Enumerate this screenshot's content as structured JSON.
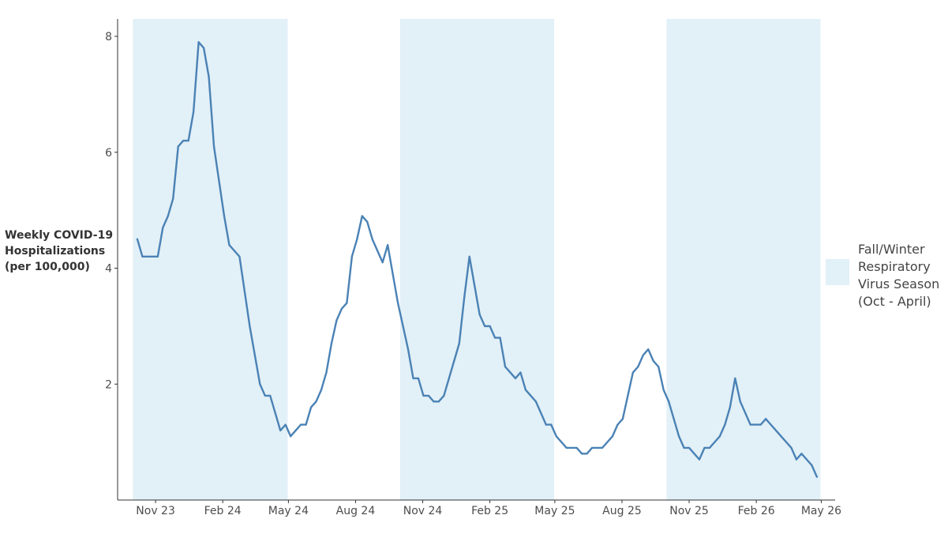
{
  "chart_data": {
    "type": "line",
    "title": "",
    "xlabel": "",
    "ylabel_lines": [
      "Weekly COVID-19",
      "Hospitalizations",
      "(per 100,000)"
    ],
    "ylim": [
      0,
      8.3
    ],
    "xlim": [
      "2023-09-10",
      "2026-05-20"
    ],
    "y_ticks": [
      2,
      4,
      6,
      8
    ],
    "x_ticks": [
      {
        "date": "2023-11-01",
        "label": "Nov 23"
      },
      {
        "date": "2024-02-01",
        "label": "Feb 24"
      },
      {
        "date": "2024-05-01",
        "label": "May 24"
      },
      {
        "date": "2024-08-01",
        "label": "Aug 24"
      },
      {
        "date": "2024-11-01",
        "label": "Nov 24"
      },
      {
        "date": "2025-02-01",
        "label": "Feb 25"
      },
      {
        "date": "2025-05-01",
        "label": "May 25"
      },
      {
        "date": "2025-08-01",
        "label": "Aug 25"
      },
      {
        "date": "2025-11-01",
        "label": "Nov 25"
      },
      {
        "date": "2026-02-01",
        "label": "Feb 26"
      },
      {
        "date": "2026-05-01",
        "label": "May 26"
      }
    ],
    "grid": false,
    "legend_position": "right",
    "line_color": "#4a82b5",
    "season_color": "#e2f0f7",
    "seasons": [
      {
        "start": "2023-10-01",
        "end": "2024-04-30"
      },
      {
        "start": "2024-10-01",
        "end": "2025-04-30"
      },
      {
        "start": "2025-10-01",
        "end": "2026-04-30"
      }
    ],
    "legend": {
      "lines": [
        "Fall/Winter",
        "Respiratory",
        "Virus Season",
        "(Oct - April)"
      ]
    },
    "series": [
      {
        "points": [
          [
            "2023-10-07",
            4.5
          ],
          [
            "2023-10-14",
            4.2
          ],
          [
            "2023-10-21",
            4.2
          ],
          [
            "2023-10-28",
            4.2
          ],
          [
            "2023-11-04",
            4.2
          ],
          [
            "2023-11-11",
            4.7
          ],
          [
            "2023-11-18",
            4.9
          ],
          [
            "2023-11-25",
            5.2
          ],
          [
            "2023-12-02",
            6.1
          ],
          [
            "2023-12-09",
            6.2
          ],
          [
            "2023-12-16",
            6.2
          ],
          [
            "2023-12-23",
            6.7
          ],
          [
            "2023-12-30",
            7.9
          ],
          [
            "2024-01-06",
            7.8
          ],
          [
            "2024-01-13",
            7.3
          ],
          [
            "2024-01-20",
            6.1
          ],
          [
            "2024-01-27",
            5.5
          ],
          [
            "2024-02-03",
            4.9
          ],
          [
            "2024-02-10",
            4.4
          ],
          [
            "2024-02-17",
            4.3
          ],
          [
            "2024-02-24",
            4.2
          ],
          [
            "2024-03-02",
            3.6
          ],
          [
            "2024-03-09",
            3.0
          ],
          [
            "2024-03-16",
            2.5
          ],
          [
            "2024-03-23",
            2.0
          ],
          [
            "2024-03-30",
            1.8
          ],
          [
            "2024-04-06",
            1.8
          ],
          [
            "2024-04-13",
            1.5
          ],
          [
            "2024-04-20",
            1.2
          ],
          [
            "2024-04-27",
            1.3
          ],
          [
            "2024-05-04",
            1.1
          ],
          [
            "2024-05-11",
            1.2
          ],
          [
            "2024-05-18",
            1.3
          ],
          [
            "2024-05-25",
            1.3
          ],
          [
            "2024-06-01",
            1.6
          ],
          [
            "2024-06-08",
            1.7
          ],
          [
            "2024-06-15",
            1.9
          ],
          [
            "2024-06-22",
            2.2
          ],
          [
            "2024-06-29",
            2.7
          ],
          [
            "2024-07-06",
            3.1
          ],
          [
            "2024-07-13",
            3.3
          ],
          [
            "2024-07-20",
            3.4
          ],
          [
            "2024-07-27",
            4.2
          ],
          [
            "2024-08-03",
            4.5
          ],
          [
            "2024-08-10",
            4.9
          ],
          [
            "2024-08-17",
            4.8
          ],
          [
            "2024-08-24",
            4.5
          ],
          [
            "2024-08-31",
            4.3
          ],
          [
            "2024-09-07",
            4.1
          ],
          [
            "2024-09-14",
            4.4
          ],
          [
            "2024-09-21",
            3.9
          ],
          [
            "2024-09-28",
            3.4
          ],
          [
            "2024-10-05",
            3.0
          ],
          [
            "2024-10-12",
            2.6
          ],
          [
            "2024-10-19",
            2.1
          ],
          [
            "2024-10-26",
            2.1
          ],
          [
            "2024-11-02",
            1.8
          ],
          [
            "2024-11-09",
            1.8
          ],
          [
            "2024-11-16",
            1.7
          ],
          [
            "2024-11-23",
            1.7
          ],
          [
            "2024-11-30",
            1.8
          ],
          [
            "2024-12-07",
            2.1
          ],
          [
            "2024-12-14",
            2.4
          ],
          [
            "2024-12-21",
            2.7
          ],
          [
            "2024-12-28",
            3.5
          ],
          [
            "2025-01-04",
            4.2
          ],
          [
            "2025-01-11",
            3.7
          ],
          [
            "2025-01-18",
            3.2
          ],
          [
            "2025-01-25",
            3.0
          ],
          [
            "2025-02-01",
            3.0
          ],
          [
            "2025-02-08",
            2.8
          ],
          [
            "2025-02-15",
            2.8
          ],
          [
            "2025-02-22",
            2.3
          ],
          [
            "2025-03-01",
            2.2
          ],
          [
            "2025-03-08",
            2.1
          ],
          [
            "2025-03-15",
            2.2
          ],
          [
            "2025-03-22",
            1.9
          ],
          [
            "2025-03-29",
            1.8
          ],
          [
            "2025-04-05",
            1.7
          ],
          [
            "2025-04-12",
            1.5
          ],
          [
            "2025-04-19",
            1.3
          ],
          [
            "2025-04-26",
            1.3
          ],
          [
            "2025-05-03",
            1.1
          ],
          [
            "2025-05-10",
            1.0
          ],
          [
            "2025-05-17",
            0.9
          ],
          [
            "2025-05-24",
            0.9
          ],
          [
            "2025-05-31",
            0.9
          ],
          [
            "2025-06-07",
            0.8
          ],
          [
            "2025-06-14",
            0.8
          ],
          [
            "2025-06-21",
            0.9
          ],
          [
            "2025-06-28",
            0.9
          ],
          [
            "2025-07-05",
            0.9
          ],
          [
            "2025-07-12",
            1.0
          ],
          [
            "2025-07-19",
            1.1
          ],
          [
            "2025-07-26",
            1.3
          ],
          [
            "2025-08-02",
            1.4
          ],
          [
            "2025-08-09",
            1.8
          ],
          [
            "2025-08-16",
            2.2
          ],
          [
            "2025-08-23",
            2.3
          ],
          [
            "2025-08-30",
            2.5
          ],
          [
            "2025-09-06",
            2.6
          ],
          [
            "2025-09-13",
            2.4
          ],
          [
            "2025-09-20",
            2.3
          ],
          [
            "2025-09-27",
            1.9
          ],
          [
            "2025-10-04",
            1.7
          ],
          [
            "2025-10-11",
            1.4
          ],
          [
            "2025-10-18",
            1.1
          ],
          [
            "2025-10-25",
            0.9
          ],
          [
            "2025-11-01",
            0.9
          ],
          [
            "2025-11-08",
            0.8
          ],
          [
            "2025-11-15",
            0.7
          ],
          [
            "2025-11-22",
            0.9
          ],
          [
            "2025-11-29",
            0.9
          ],
          [
            "2025-12-06",
            1.0
          ],
          [
            "2025-12-13",
            1.1
          ],
          [
            "2025-12-20",
            1.3
          ],
          [
            "2025-12-27",
            1.6
          ],
          [
            "2026-01-03",
            2.1
          ],
          [
            "2026-01-10",
            1.7
          ],
          [
            "2026-01-17",
            1.5
          ],
          [
            "2026-01-24",
            1.3
          ],
          [
            "2026-01-31",
            1.3
          ],
          [
            "2026-02-07",
            1.3
          ],
          [
            "2026-02-14",
            1.4
          ],
          [
            "2026-02-21",
            1.3
          ],
          [
            "2026-02-28",
            1.2
          ],
          [
            "2026-03-07",
            1.1
          ],
          [
            "2026-03-14",
            1.0
          ],
          [
            "2026-03-21",
            0.9
          ],
          [
            "2026-03-28",
            0.7
          ],
          [
            "2026-04-04",
            0.8
          ],
          [
            "2026-04-11",
            0.7
          ],
          [
            "2026-04-18",
            0.6
          ],
          [
            "2026-04-25",
            0.4
          ]
        ]
      }
    ]
  }
}
